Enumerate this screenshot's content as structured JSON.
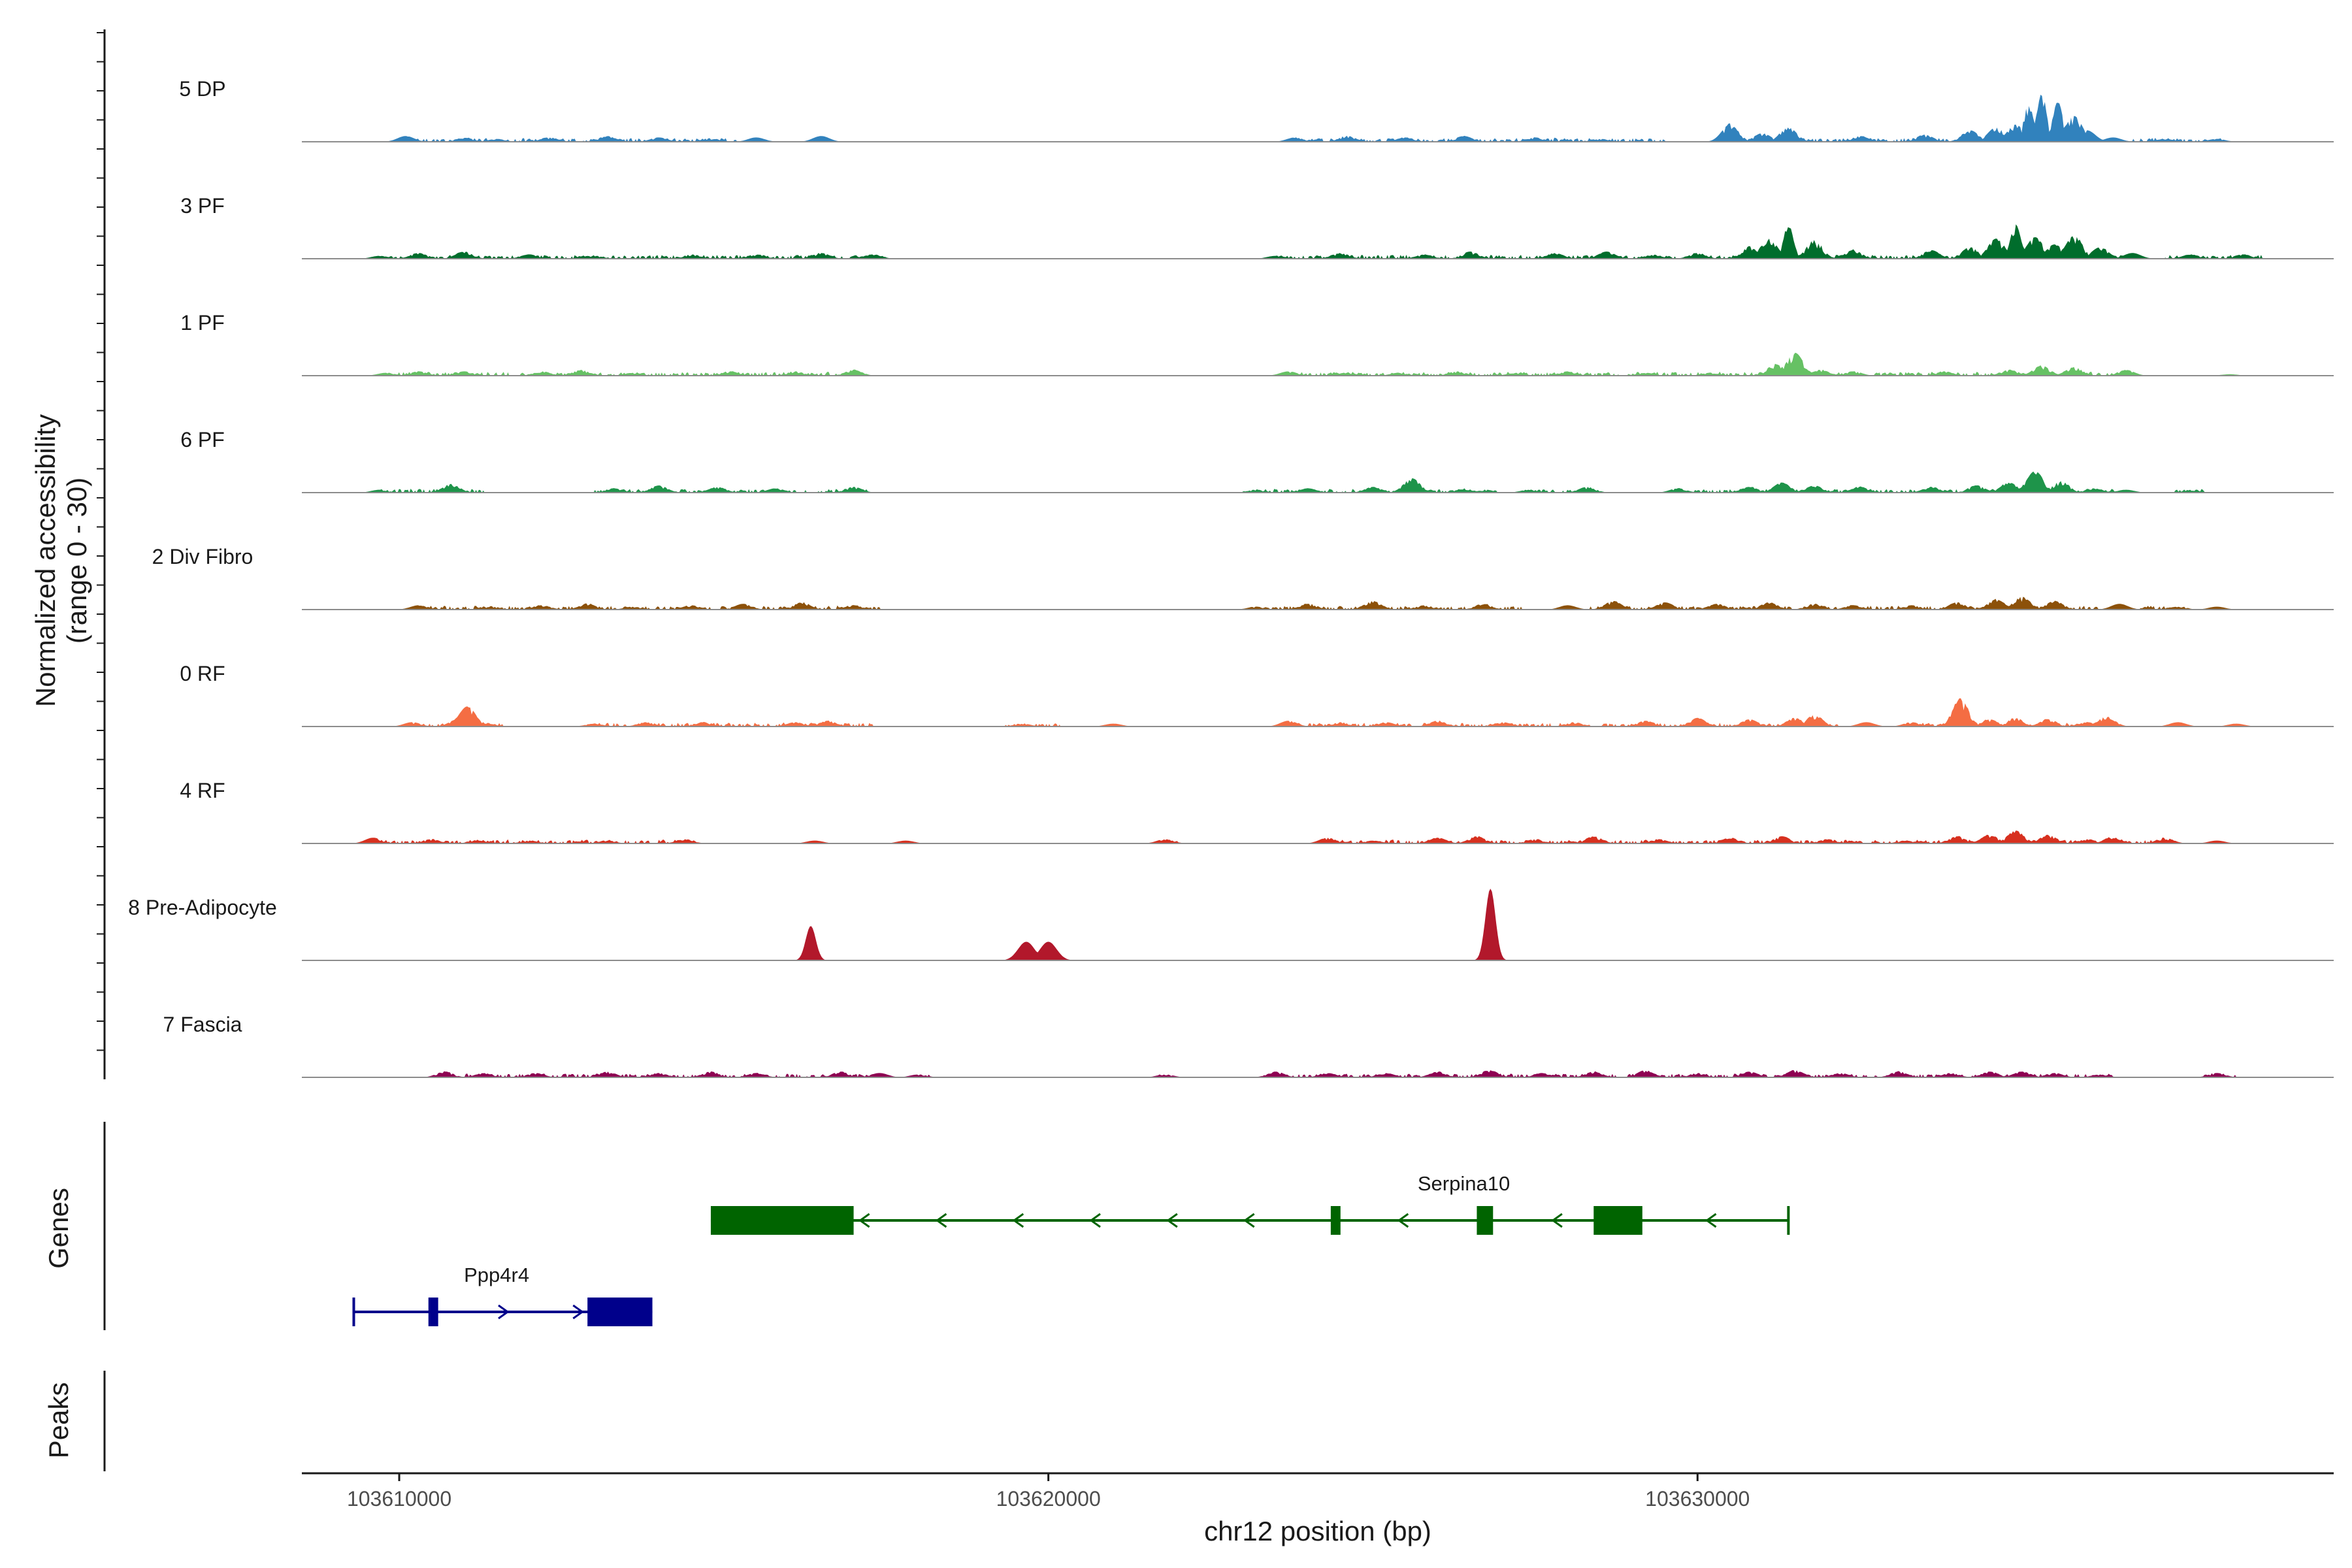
{
  "chart_data": {
    "type": "area",
    "title": "",
    "ylabel_line1": "Normalized accessibility",
    "ylabel_line2": "(range 0 - 30)",
    "ylim": [
      0,
      30
    ],
    "xlabel": "chr12 position (bp)",
    "xlim": [
      103608500,
      103639800
    ],
    "x_ticks": [
      {
        "value": 103610000,
        "label": "103610000"
      },
      {
        "value": 103620000,
        "label": "103620000"
      },
      {
        "value": 103630000,
        "label": "103630000"
      }
    ],
    "panel_titles": {
      "genes": "Genes",
      "peaks": "Peaks"
    },
    "tracks": [
      {
        "name": "5 DP",
        "color": "#3182BD",
        "peaks": [
          [
            103610100,
            4
          ],
          [
            103611000,
            3
          ],
          [
            103611500,
            2
          ],
          [
            103612300,
            3
          ],
          [
            103613200,
            4
          ],
          [
            103614000,
            3
          ],
          [
            103614800,
            2
          ],
          [
            103615500,
            3
          ],
          [
            103616500,
            4
          ],
          [
            103623800,
            3
          ],
          [
            103624600,
            4
          ],
          [
            103625500,
            3
          ],
          [
            103626400,
            4
          ],
          [
            103627500,
            3
          ],
          [
            103628500,
            2
          ],
          [
            103630500,
            12
          ],
          [
            103631000,
            6
          ],
          [
            103631400,
            10
          ],
          [
            103632500,
            4
          ],
          [
            103633500,
            5
          ],
          [
            103634200,
            8
          ],
          [
            103634600,
            10
          ],
          [
            103634900,
            12
          ],
          [
            103635100,
            25
          ],
          [
            103635300,
            32
          ],
          [
            103635550,
            28
          ],
          [
            103635800,
            18
          ],
          [
            103636000,
            8
          ],
          [
            103636400,
            3
          ],
          [
            103637200,
            2
          ],
          [
            103638000,
            2
          ]
        ],
        "noise_from": [
          [
            103610100,
            103615200
          ],
          [
            103623700,
            103629500
          ],
          [
            103630400,
            103636000
          ],
          [
            103636700,
            103638100
          ]
        ]
      },
      {
        "name": "3 PF",
        "color": "#006D2C",
        "peaks": [
          [
            103609700,
            2
          ],
          [
            103610300,
            4
          ],
          [
            103611000,
            5
          ],
          [
            103612000,
            3
          ],
          [
            103613000,
            2
          ],
          [
            103614500,
            3
          ],
          [
            103615500,
            3
          ],
          [
            103616500,
            4
          ],
          [
            103617300,
            3
          ],
          [
            103623500,
            2
          ],
          [
            103624500,
            4
          ],
          [
            103625800,
            3
          ],
          [
            103626500,
            5
          ],
          [
            103627800,
            4
          ],
          [
            103628600,
            5
          ],
          [
            103629300,
            3
          ],
          [
            103630000,
            4
          ],
          [
            103630800,
            8
          ],
          [
            103631100,
            14
          ],
          [
            103631400,
            22
          ],
          [
            103631800,
            12
          ],
          [
            103632400,
            6
          ],
          [
            103633600,
            6
          ],
          [
            103634200,
            8
          ],
          [
            103634600,
            14
          ],
          [
            103634900,
            24
          ],
          [
            103635200,
            15
          ],
          [
            103635500,
            10
          ],
          [
            103635800,
            16
          ],
          [
            103636200,
            8
          ],
          [
            103636700,
            4
          ],
          [
            103637600,
            3
          ],
          [
            103638400,
            3
          ]
        ],
        "noise_from": [
          [
            103609700,
            103617500
          ],
          [
            103623500,
            103636600
          ],
          [
            103637200,
            103638700
          ]
        ]
      },
      {
        "name": "1 PF",
        "color": "#66C164",
        "peaks": [
          [
            103609800,
            2
          ],
          [
            103610300,
            3
          ],
          [
            103611000,
            3
          ],
          [
            103612200,
            3
          ],
          [
            103612800,
            4
          ],
          [
            103613600,
            2
          ],
          [
            103615100,
            3
          ],
          [
            103616100,
            3
          ],
          [
            103617000,
            4
          ],
          [
            103623700,
            3
          ],
          [
            103624600,
            2
          ],
          [
            103625400,
            2
          ],
          [
            103626300,
            3
          ],
          [
            103627200,
            2
          ],
          [
            103628000,
            3
          ],
          [
            103629200,
            2
          ],
          [
            103630200,
            2
          ],
          [
            103631200,
            8
          ],
          [
            103631500,
            16
          ],
          [
            103631900,
            4
          ],
          [
            103632400,
            3
          ],
          [
            103633800,
            3
          ],
          [
            103634800,
            4
          ],
          [
            103635300,
            7
          ],
          [
            103635800,
            6
          ],
          [
            103636600,
            4
          ],
          [
            103638200,
            1
          ]
        ],
        "noise_from": [
          [
            103609800,
            103617200
          ],
          [
            103623700,
            103636700
          ]
        ]
      },
      {
        "name": "6 PF",
        "color": "#1E944A",
        "peaks": [
          [
            103609700,
            2
          ],
          [
            103610800,
            6
          ],
          [
            103613300,
            3
          ],
          [
            103614000,
            5
          ],
          [
            103614900,
            4
          ],
          [
            103615800,
            3
          ],
          [
            103617000,
            4
          ],
          [
            103623200,
            2
          ],
          [
            103624000,
            3
          ],
          [
            103625000,
            4
          ],
          [
            103625600,
            10
          ],
          [
            103626400,
            3
          ],
          [
            103627400,
            2
          ],
          [
            103628300,
            4
          ],
          [
            103629700,
            3
          ],
          [
            103630800,
            4
          ],
          [
            103631300,
            7
          ],
          [
            103631800,
            5
          ],
          [
            103632500,
            4
          ],
          [
            103633600,
            4
          ],
          [
            103634300,
            5
          ],
          [
            103634800,
            7
          ],
          [
            103635200,
            15
          ],
          [
            103635600,
            8
          ],
          [
            103636100,
            3
          ],
          [
            103636600,
            2
          ],
          [
            103637600,
            2
          ]
        ],
        "noise_from": [
          [
            103609700,
            103611300
          ],
          [
            103613000,
            103617200
          ],
          [
            103623000,
            103626900
          ],
          [
            103627300,
            103628500
          ],
          [
            103629600,
            103636500
          ],
          [
            103637300,
            103637800
          ]
        ]
      },
      {
        "name": "2 Div Fibro",
        "color": "#8C510A",
        "peaks": [
          [
            103610300,
            3
          ],
          [
            103611400,
            2
          ],
          [
            103612200,
            3
          ],
          [
            103612900,
            4
          ],
          [
            103613600,
            2
          ],
          [
            103614500,
            3
          ],
          [
            103615300,
            4
          ],
          [
            103616200,
            5
          ],
          [
            103617000,
            3
          ],
          [
            103623200,
            2
          ],
          [
            103624000,
            4
          ],
          [
            103625000,
            6
          ],
          [
            103625800,
            3
          ],
          [
            103626700,
            4
          ],
          [
            103628000,
            3
          ],
          [
            103628700,
            6
          ],
          [
            103629500,
            5
          ],
          [
            103630300,
            4
          ],
          [
            103631100,
            5
          ],
          [
            103631800,
            4
          ],
          [
            103632400,
            3
          ],
          [
            103633300,
            3
          ],
          [
            103634000,
            5
          ],
          [
            103634600,
            7
          ],
          [
            103635000,
            9
          ],
          [
            103635500,
            6
          ],
          [
            103636500,
            4
          ],
          [
            103637400,
            2
          ],
          [
            103638000,
            2
          ]
        ],
        "noise_from": [
          [
            103610200,
            103617400
          ],
          [
            103623100,
            103627300
          ],
          [
            103628300,
            103636200
          ],
          [
            103636700,
            103637600
          ]
        ]
      },
      {
        "name": "0 RF",
        "color": "#F46D43",
        "peaks": [
          [
            103610200,
            3
          ],
          [
            103610900,
            5
          ],
          [
            103611050,
            14
          ],
          [
            103611300,
            3
          ],
          [
            103613000,
            2
          ],
          [
            103613800,
            3
          ],
          [
            103614700,
            3
          ],
          [
            103616100,
            3
          ],
          [
            103616600,
            4
          ],
          [
            103619600,
            2
          ],
          [
            103621000,
            2
          ],
          [
            103623700,
            4
          ],
          [
            103624500,
            3
          ],
          [
            103625200,
            3
          ],
          [
            103626000,
            4
          ],
          [
            103627000,
            3
          ],
          [
            103628100,
            3
          ],
          [
            103629200,
            4
          ],
          [
            103630000,
            6
          ],
          [
            103630800,
            5
          ],
          [
            103631500,
            6
          ],
          [
            103631800,
            8
          ],
          [
            103632600,
            3
          ],
          [
            103633300,
            3
          ],
          [
            103634050,
            18
          ],
          [
            103634500,
            5
          ],
          [
            103634900,
            6
          ],
          [
            103635400,
            5
          ],
          [
            103636000,
            3
          ],
          [
            103636300,
            7
          ],
          [
            103637400,
            3
          ],
          [
            103638300,
            2
          ]
        ],
        "noise_from": [
          [
            103610200,
            103611600
          ],
          [
            103612800,
            103617300
          ],
          [
            103619300,
            103620200
          ],
          [
            103623600,
            103632200
          ],
          [
            103633200,
            103636500
          ]
        ]
      },
      {
        "name": "4 RF",
        "color": "#D7301F",
        "peaks": [
          [
            103609600,
            4
          ],
          [
            103610500,
            3
          ],
          [
            103611200,
            2
          ],
          [
            103612000,
            2
          ],
          [
            103613200,
            2
          ],
          [
            103614400,
            3
          ],
          [
            103616400,
            2
          ],
          [
            103617800,
            2
          ],
          [
            103621800,
            3
          ],
          [
            103624300,
            4
          ],
          [
            103625000,
            2
          ],
          [
            103626000,
            4
          ],
          [
            103626600,
            5
          ],
          [
            103627500,
            3
          ],
          [
            103628400,
            5
          ],
          [
            103629400,
            3
          ],
          [
            103630500,
            4
          ],
          [
            103631300,
            5
          ],
          [
            103632000,
            3
          ],
          [
            103633200,
            2
          ],
          [
            103634000,
            5
          ],
          [
            103634500,
            6
          ],
          [
            103634900,
            9
          ],
          [
            103635400,
            6
          ],
          [
            103636000,
            3
          ],
          [
            103636400,
            5
          ],
          [
            103637200,
            4
          ],
          [
            103638000,
            2
          ]
        ],
        "noise_from": [
          [
            103609600,
            103614600
          ],
          [
            103621700,
            103622000
          ],
          [
            103624200,
            103637400
          ]
        ]
      },
      {
        "name": "8 Pre-Adipocyte",
        "color": "#B2182B",
        "peaks": [
          [
            103616340,
            24
          ],
          [
            103619660,
            13
          ],
          [
            103620000,
            13
          ],
          [
            103626810,
            50
          ]
        ],
        "noise_from": []
      },
      {
        "name": "7 Fascia",
        "color": "#8E0152",
        "peaks": [
          [
            103610700,
            4
          ],
          [
            103611300,
            3
          ],
          [
            103612100,
            3
          ],
          [
            103613200,
            4
          ],
          [
            103614000,
            3
          ],
          [
            103614800,
            4
          ],
          [
            103615500,
            3
          ],
          [
            103616800,
            4
          ],
          [
            103617400,
            3
          ],
          [
            103618000,
            2
          ],
          [
            103621800,
            2
          ],
          [
            103623500,
            4
          ],
          [
            103624300,
            3
          ],
          [
            103625200,
            3
          ],
          [
            103626000,
            4
          ],
          [
            103626800,
            5
          ],
          [
            103627600,
            3
          ],
          [
            103628400,
            4
          ],
          [
            103629200,
            5
          ],
          [
            103630000,
            3
          ],
          [
            103630800,
            4
          ],
          [
            103631500,
            5
          ],
          [
            103632200,
            3
          ],
          [
            103633100,
            4
          ],
          [
            103633900,
            3
          ],
          [
            103634500,
            4
          ],
          [
            103635000,
            4
          ],
          [
            103635500,
            3
          ],
          [
            103636200,
            2
          ],
          [
            103638000,
            3
          ]
        ],
        "noise_from": [
          [
            103610500,
            103617300
          ],
          [
            103618000,
            103618200
          ],
          [
            103621700,
            103621900
          ],
          [
            103623300,
            103636400
          ],
          [
            103637800,
            103638300
          ]
        ]
      }
    ],
    "genes": [
      {
        "name": "Serpina10",
        "strand": "-",
        "color": "#006400",
        "start": 103614800,
        "end": 103631400,
        "row": 1,
        "exons": [
          [
            103614800,
            103617000
          ],
          [
            103624350,
            103624500
          ],
          [
            103626600,
            103626850
          ],
          [
            103628400,
            103629150
          ]
        ],
        "label_pos": 103626400
      },
      {
        "name": "Ppp4r4",
        "strand": "+",
        "color": "#00008B",
        "start": 103609300,
        "end": 103613900,
        "row": 2,
        "exons": [
          [
            103610450,
            103610600
          ],
          [
            103612900,
            103613900
          ]
        ],
        "label_pos": 103611500
      }
    ],
    "peaks_track": []
  }
}
